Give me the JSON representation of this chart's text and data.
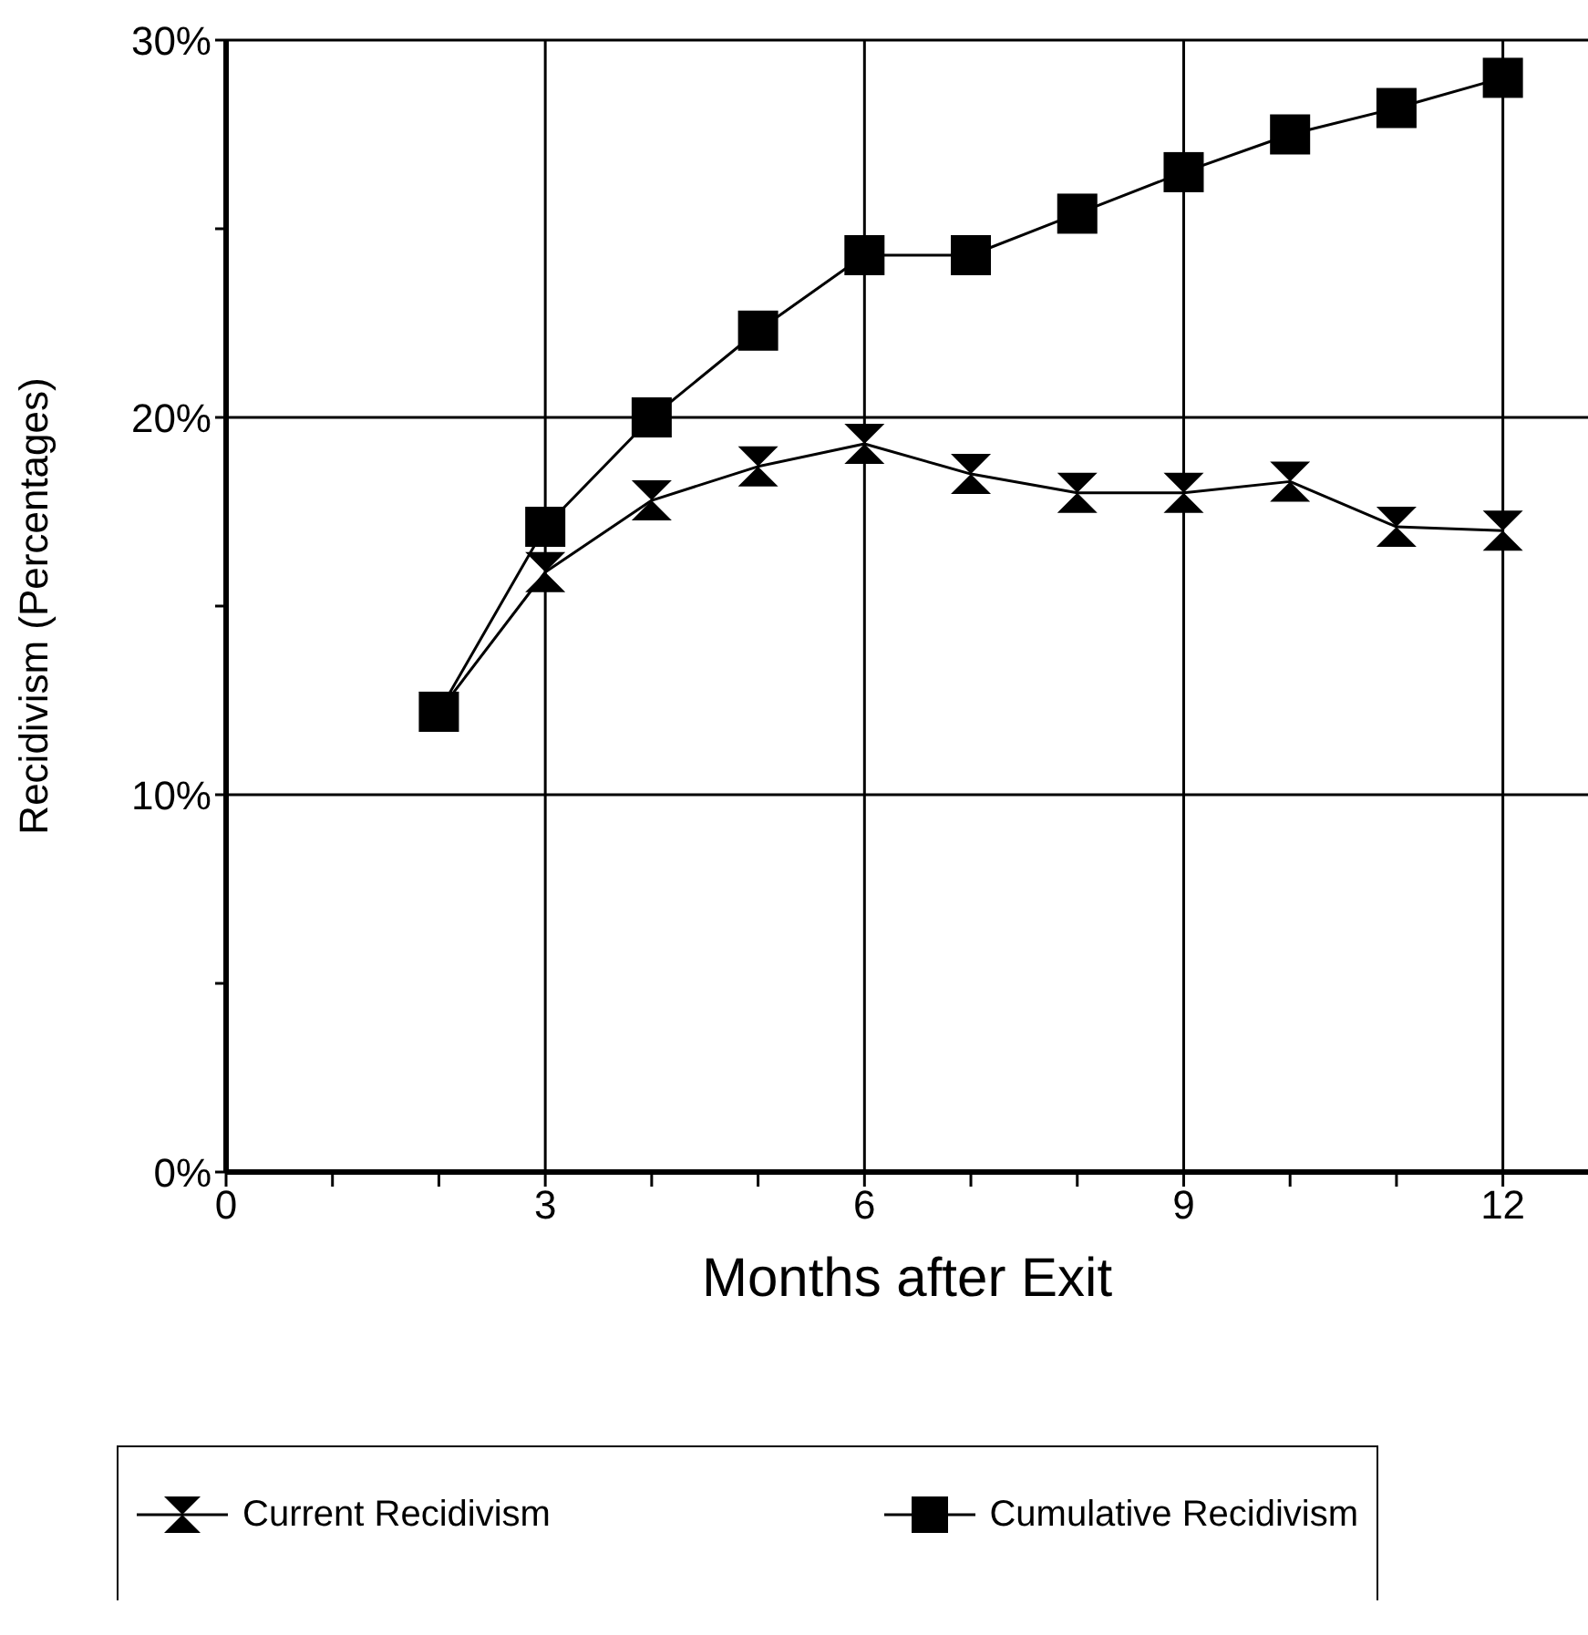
{
  "chart_data": {
    "type": "line",
    "xlabel": "Months after Exit",
    "ylabel": "Recidivism (Percentages)",
    "x": [
      2,
      3,
      4,
      5,
      6,
      7,
      8,
      9,
      10,
      11,
      12
    ],
    "series": [
      {
        "name": "Current Recidivism",
        "color": "#000000",
        "values": [
          12.2,
          15.9,
          17.8,
          18.7,
          19.3,
          18.5,
          18.0,
          18.0,
          18.3,
          17.1,
          17.0
        ]
      },
      {
        "name": "Cumulative Recidivism",
        "color": "#000000",
        "marker": "square",
        "values": [
          12.2,
          17.1,
          20.0,
          22.3,
          24.3,
          24.3,
          25.4,
          26.5,
          27.5,
          28.2,
          29.0
        ]
      }
    ],
    "xlim": [
      0,
      12.8
    ],
    "ylim": [
      0,
      30
    ],
    "xticks": [
      0,
      {
        "value": 1,
        "label": null
      },
      {
        "value": 2,
        "label": null
      },
      3,
      {
        "value": 4,
        "label": null
      },
      {
        "value": 5,
        "label": null
      },
      6,
      {
        "value": 7,
        "label": null
      },
      {
        "value": 8,
        "label": null
      },
      9,
      {
        "value": 10,
        "label": null
      },
      {
        "value": 11,
        "label": null
      },
      12
    ],
    "yticks": [
      {
        "value": 0,
        "label": "0%"
      },
      {
        "value": 5,
        "label": null
      },
      {
        "value": 10,
        "label": "10%"
      },
      {
        "value": 15,
        "label": null
      },
      {
        "value": 20,
        "label": "20%"
      },
      {
        "value": 25,
        "label": null
      },
      {
        "value": 30,
        "label": "30%"
      }
    ],
    "grid": true,
    "legend": "bottom",
    "line_style": "solid"
  }
}
